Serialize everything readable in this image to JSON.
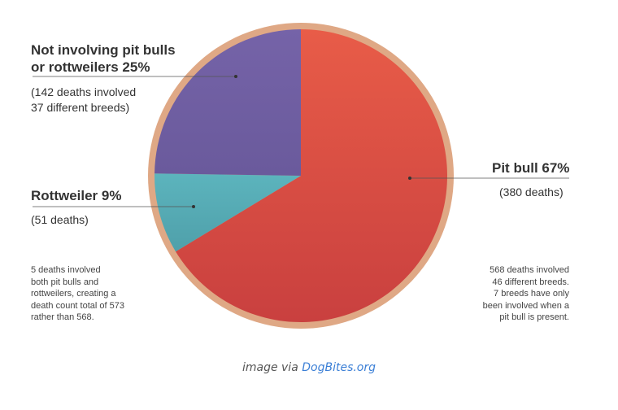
{
  "chart_data": {
    "type": "pie",
    "slices": [
      {
        "name": "Pit bull",
        "percent": 67,
        "value": 380,
        "label": "Pit bull 67%",
        "sublabel": "(380 deaths)",
        "color": "#c9403f",
        "lightColor": "#e85c48"
      },
      {
        "name": "Rottweiler",
        "percent": 9,
        "value": 51,
        "label": "Rottweiler 9%",
        "sublabel": "(51 deaths)",
        "color": "#4fa0aa",
        "lightColor": "#5cb4bd"
      },
      {
        "name": "Not involving pit bulls or rottweilers",
        "percent": 25,
        "value": 142,
        "label_line1": "Not involving pit bulls",
        "label_line2": "or rottweilers 25%",
        "sublabel_line1": "(142 deaths involved",
        "sublabel_line2": "37 different breeds)",
        "color": "#6a5a9c",
        "lightColor": "#7563a8"
      }
    ],
    "rim_color": "#dfa885",
    "leader_color": "#555555"
  },
  "notes": {
    "left": [
      "5 deaths involved",
      "both pit bulls and",
      "rottweilers, creating a",
      "death count total of 573",
      "rather than 568."
    ],
    "right": [
      "568 deaths involved",
      "46 different breeds.",
      "7 breeds have only",
      "been involved when a",
      "pit bull is present."
    ]
  },
  "caption": {
    "prefix": "image via ",
    "link": "DogBites.org"
  }
}
